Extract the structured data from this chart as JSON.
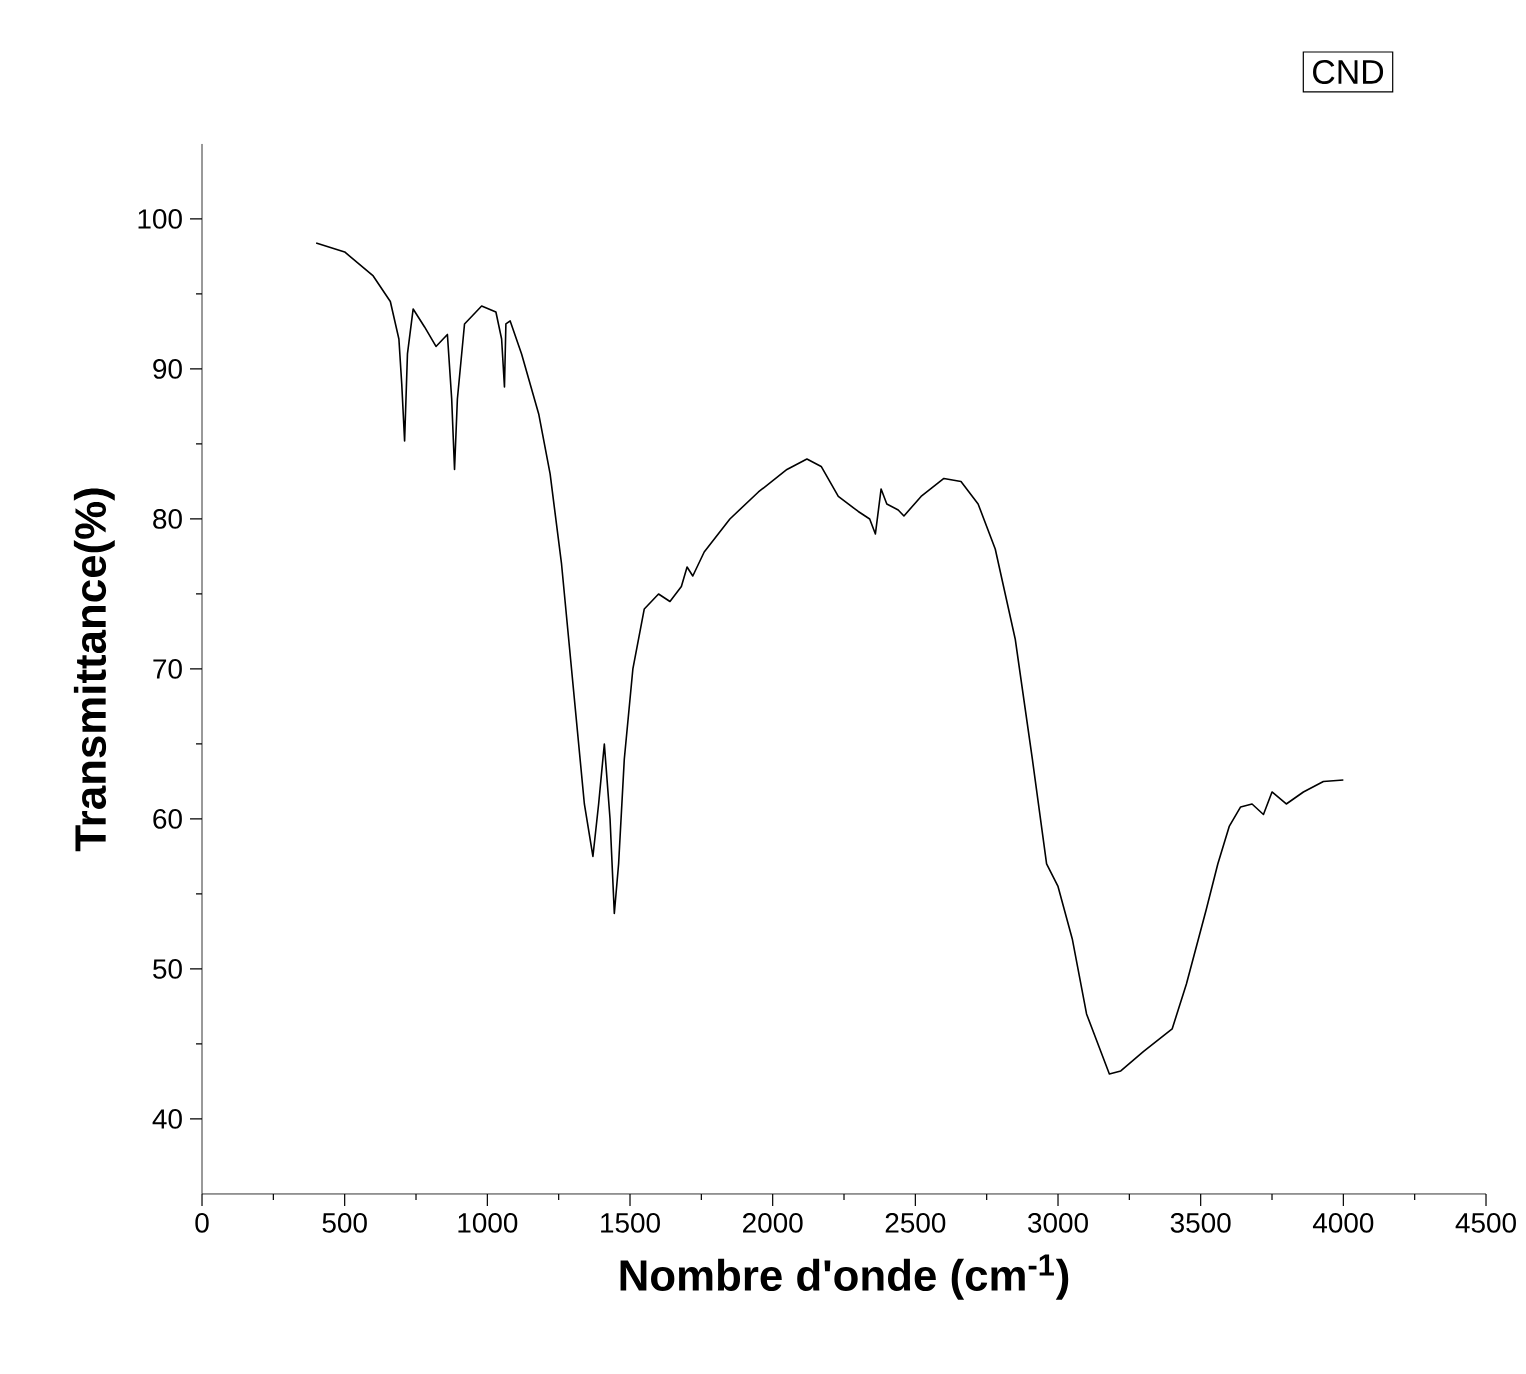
{
  "chart_data": {
    "type": "line",
    "xlabel": "Nombre d'onde (cm$^{-1}$)",
    "ylabel": "Transmittance(%)",
    "annotations": [
      "CND"
    ],
    "xlim": [
      0,
      4500
    ],
    "ylim": [
      35,
      105
    ],
    "xticks": [
      0,
      500,
      1000,
      1500,
      2000,
      2500,
      3000,
      3500,
      4000,
      4500
    ],
    "yticks": [
      40,
      50,
      60,
      70,
      80,
      90,
      100
    ],
    "grid": false,
    "marker": "none",
    "line_style": "solid",
    "series": [
      {
        "color": "#000000",
        "x": [
          400,
          500,
          600,
          660,
          690,
          700,
          710,
          720,
          740,
          780,
          820,
          860,
          875,
          885,
          895,
          920,
          980,
          1030,
          1050,
          1060,
          1065,
          1080,
          1120,
          1180,
          1220,
          1260,
          1300,
          1340,
          1370,
          1390,
          1410,
          1430,
          1445,
          1460,
          1480,
          1510,
          1550,
          1600,
          1640,
          1680,
          1700,
          1720,
          1760,
          1850,
          1950,
          2050,
          2120,
          2170,
          2230,
          2300,
          2340,
          2360,
          2380,
          2400,
          2440,
          2460,
          2520,
          2600,
          2660,
          2720,
          2780,
          2850,
          2910,
          2960,
          3000,
          3050,
          3100,
          3180,
          3220,
          3300,
          3400,
          3450,
          3520,
          3560,
          3600,
          3640,
          3680,
          3720,
          3750,
          3800,
          3860,
          3930,
          4000
        ],
        "values": [
          98.4,
          97.8,
          96.2,
          94.5,
          92,
          89,
          85.2,
          91,
          94,
          92.8,
          91.5,
          92.3,
          88,
          83.3,
          88,
          93,
          94.2,
          93.8,
          92,
          88.8,
          93,
          93.2,
          91,
          87,
          83,
          77,
          69,
          61,
          57.5,
          61,
          65,
          60,
          53.7,
          57,
          64,
          70,
          74,
          75,
          74.5,
          75.5,
          76.8,
          76.2,
          77.8,
          80,
          81.8,
          83.3,
          84,
          83.5,
          81.5,
          80.5,
          80,
          79,
          82,
          81,
          80.6,
          80.2,
          81.5,
          82.7,
          82.5,
          81,
          78,
          72,
          64,
          57,
          55.5,
          52,
          47,
          43,
          43.2,
          44.5,
          46,
          49,
          54,
          57,
          59.5,
          60.8,
          61,
          60.3,
          61.8,
          61,
          61.8,
          62.5,
          62.6
        ]
      }
    ]
  }
}
